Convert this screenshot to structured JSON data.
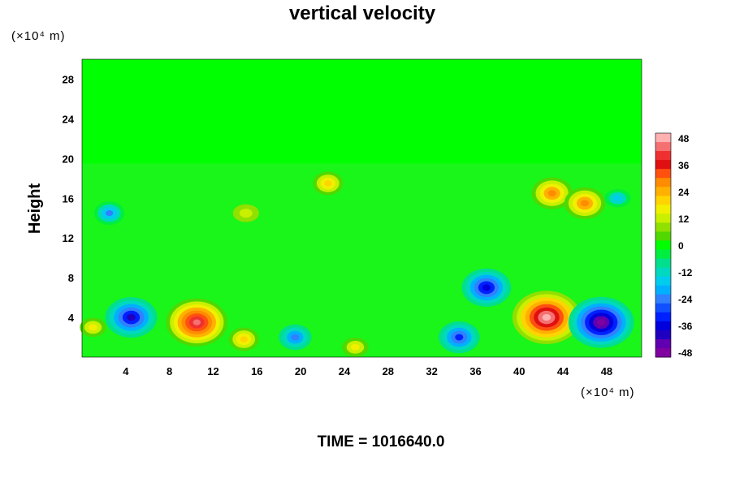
{
  "chart_data": {
    "type": "heatmap",
    "title": "vertical velocity",
    "ylabel": "Height",
    "y_unit": "(×10⁴ m)",
    "x_unit": "(×10⁴ m)",
    "footer": "TIME = 1016640.0",
    "x_ticks": [
      4,
      8,
      12,
      16,
      20,
      24,
      28,
      32,
      36,
      40,
      44,
      48
    ],
    "y_ticks": [
      4,
      8,
      12,
      16,
      20,
      24,
      28
    ],
    "xlim": [
      0,
      51.2
    ],
    "ylim": [
      0,
      30
    ],
    "colorbar": {
      "ticks": [
        48,
        36,
        24,
        12,
        0,
        -12,
        -24,
        -36,
        -48
      ],
      "range": [
        -50,
        50
      ],
      "levels": 25,
      "colors": [
        "#ffb0b0",
        "#f57070",
        "#f03030",
        "#e01010",
        "#ff5010",
        "#ff8c00",
        "#ffb000",
        "#ffd400",
        "#f0f000",
        "#c8f000",
        "#90e000",
        "#50d800",
        "#00ff00",
        "#00ee40",
        "#00e08c",
        "#00d8c0",
        "#00ccee",
        "#00b0ff",
        "#3080ff",
        "#1050ff",
        "#0020ff",
        "#0000dd",
        "#2000c0",
        "#6000b0",
        "#8000a0"
      ]
    },
    "features": [
      {
        "x": 42.5,
        "y": 4.0,
        "value": 50
      },
      {
        "x": 10.5,
        "y": 3.5,
        "value": 45
      },
      {
        "x": 47.5,
        "y": 3.5,
        "value": -48
      },
      {
        "x": 4.5,
        "y": 4.0,
        "value": -38
      },
      {
        "x": 34.5,
        "y": 2.0,
        "value": -30
      },
      {
        "x": 19.5,
        "y": 2.0,
        "value": -24
      },
      {
        "x": 37.0,
        "y": 7.0,
        "value": -36
      },
      {
        "x": 43.0,
        "y": 16.5,
        "value": 30
      },
      {
        "x": 46.0,
        "y": 15.5,
        "value": 30
      },
      {
        "x": 14.8,
        "y": 1.8,
        "value": 22
      },
      {
        "x": 25.0,
        "y": 1.0,
        "value": 18
      },
      {
        "x": 1.0,
        "y": 3.0,
        "value": 18
      },
      {
        "x": 22.5,
        "y": 17.5,
        "value": 22
      },
      {
        "x": 15.0,
        "y": 14.5,
        "value": 14
      },
      {
        "x": 2.5,
        "y": 14.5,
        "value": -22
      },
      {
        "x": 49.0,
        "y": 16.0,
        "value": -16
      }
    ]
  }
}
